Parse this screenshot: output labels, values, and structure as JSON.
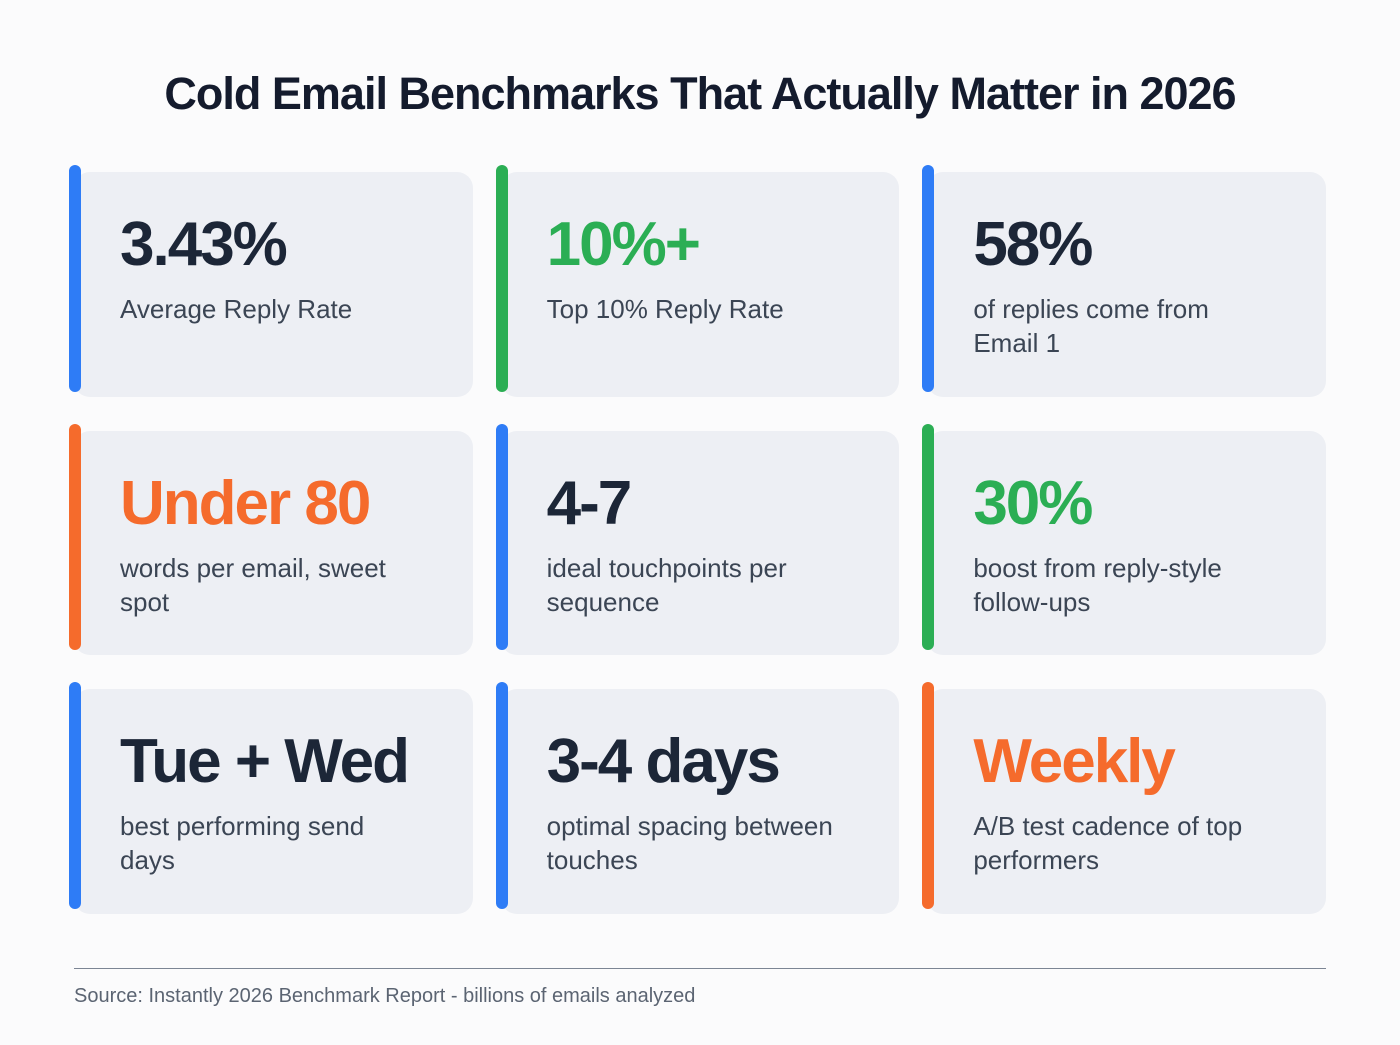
{
  "title": "Cold Email Benchmarks That Actually Matter in 2026",
  "cards": [
    {
      "value": "3.43%",
      "label": "Average Reply Rate",
      "value_color": "#1c2637",
      "accent_color": "#2e7cf6"
    },
    {
      "value": "10%+",
      "label": "Top 10% Reply Rate",
      "value_color": "#2bae54",
      "accent_color": "#2bae54"
    },
    {
      "value": "58%",
      "label": "of replies come from Email 1",
      "value_color": "#1c2637",
      "accent_color": "#2e7cf6"
    },
    {
      "value": "Under 80",
      "label": "words per email, sweet spot",
      "value_color": "#f56b2c",
      "accent_color": "#f56b2c"
    },
    {
      "value": "4-7",
      "label": "ideal touchpoints per sequence",
      "value_color": "#1c2637",
      "accent_color": "#2e7cf6"
    },
    {
      "value": "30%",
      "label": "boost from reply-style follow-ups",
      "value_color": "#2bae54",
      "accent_color": "#2bae54"
    },
    {
      "value": "Tue + Wed",
      "label": "best performing send days",
      "value_color": "#1c2637",
      "accent_color": "#2e7cf6"
    },
    {
      "value": "3-4 days",
      "label": "optimal spacing between touches",
      "value_color": "#1c2637",
      "accent_color": "#2e7cf6"
    },
    {
      "value": "Weekly",
      "label": "A/B test cadence of top performers",
      "value_color": "#f56b2c",
      "accent_color": "#f56b2c"
    }
  ],
  "footer": {
    "source": "Source: Instantly 2026 Benchmark Report - billions of emails analyzed"
  },
  "palette": {
    "navy": "#1c2637",
    "green": "#2bae54",
    "orange": "#f56b2c",
    "blue_accent": "#2e7cf6",
    "card_background": "#edeff4",
    "page_background": "#fbfbfc"
  },
  "chart_data": {
    "type": "table",
    "title": "Cold Email Benchmarks That Actually Matter in 2026",
    "columns": [
      "value",
      "metric"
    ],
    "rows": [
      {
        "value": "3.43%",
        "metric": "Average Reply Rate"
      },
      {
        "value": "10%+",
        "metric": "Top 10% Reply Rate"
      },
      {
        "value": "58%",
        "metric": "of replies come from Email 1"
      },
      {
        "value": "Under 80",
        "metric": "words per email, sweet spot"
      },
      {
        "value": "4-7",
        "metric": "ideal touchpoints per sequence"
      },
      {
        "value": "30%",
        "metric": "boost from reply-style follow-ups"
      },
      {
        "value": "Tue + Wed",
        "metric": "best performing send days"
      },
      {
        "value": "3-4 days",
        "metric": "optimal spacing between touches"
      },
      {
        "value": "Weekly",
        "metric": "A/B test cadence of top performers"
      }
    ],
    "source": "Source: Instantly 2026 Benchmark Report - billions of emails analyzed"
  }
}
